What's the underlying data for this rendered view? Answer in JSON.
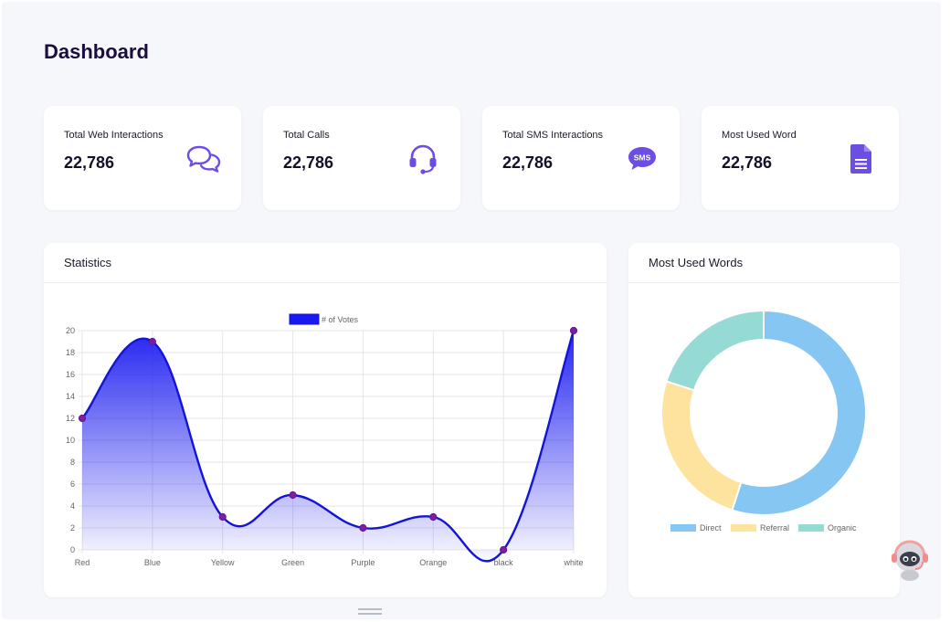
{
  "header": {
    "title": "Dashboard"
  },
  "stats": [
    {
      "label": "Total Web Interactions",
      "value": "22,786",
      "icon": "chat-bubbles-icon"
    },
    {
      "label": "Total Calls",
      "value": "22,786",
      "icon": "headset-icon"
    },
    {
      "label": "Total SMS Interactions",
      "value": "22,786",
      "icon": "sms-icon",
      "icon_text": "SMS"
    },
    {
      "label": "Most Used Word",
      "value": "22,786",
      "icon": "document-icon"
    }
  ],
  "statistics": {
    "title": "Statistics"
  },
  "words": {
    "title": "Most Used Words"
  },
  "colors": {
    "accent": "#6c4ee4",
    "line": "#1414d8",
    "point": "#7a1fa0",
    "direct": "#85c6f2",
    "referral": "#fde39d",
    "organic": "#95dad4"
  },
  "chart_data": [
    {
      "type": "line",
      "title": "",
      "categories": [
        "Red",
        "Blue",
        "Yellow",
        "Green",
        "Purple",
        "Orange",
        "black",
        "white"
      ],
      "series": [
        {
          "name": "# of Votes",
          "values": [
            12,
            19,
            3,
            5,
            2,
            3,
            0,
            20
          ]
        }
      ],
      "ylim": [
        0,
        20
      ],
      "yticks": [
        0,
        2,
        4,
        6,
        8,
        10,
        12,
        14,
        16,
        18,
        20
      ],
      "grid": true,
      "legend": "top-center",
      "fill": "gradient"
    },
    {
      "type": "pie",
      "variant": "doughnut",
      "labels": [
        "Direct",
        "Referral",
        "Organic"
      ],
      "values": [
        55,
        25,
        20
      ],
      "legend": "bottom"
    }
  ]
}
